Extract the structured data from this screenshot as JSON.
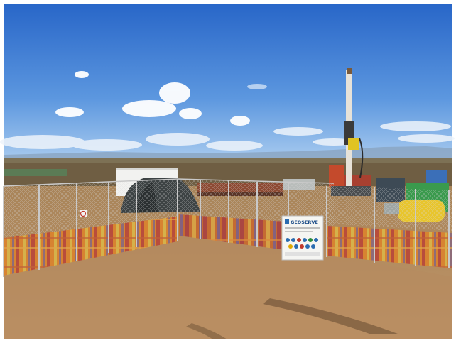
{
  "scene": {
    "sign": {
      "brand": "GEOSERVE"
    }
  },
  "colors": {
    "sky_top": "#2f6fd0",
    "sky_horizon": "#9cc3ee",
    "ground": "#b98e5c",
    "shrubland": "#6f5e43",
    "fence_mesh": "#c9c9c9",
    "shade_cloth_orange": "#d9832f",
    "shade_cloth_red": "#b84a3a",
    "shade_cloth_yellow": "#d7b34a",
    "drill_mast": "#e7e2d8",
    "drill_yellow": "#e0c322",
    "tank_yellow": "#e8c52d",
    "cabin_white": "#f2f2f0",
    "tent_dark": "#3d4344"
  },
  "icons": [
    "cloud-shape",
    "drill-rig",
    "fence-panel",
    "site-sign"
  ]
}
